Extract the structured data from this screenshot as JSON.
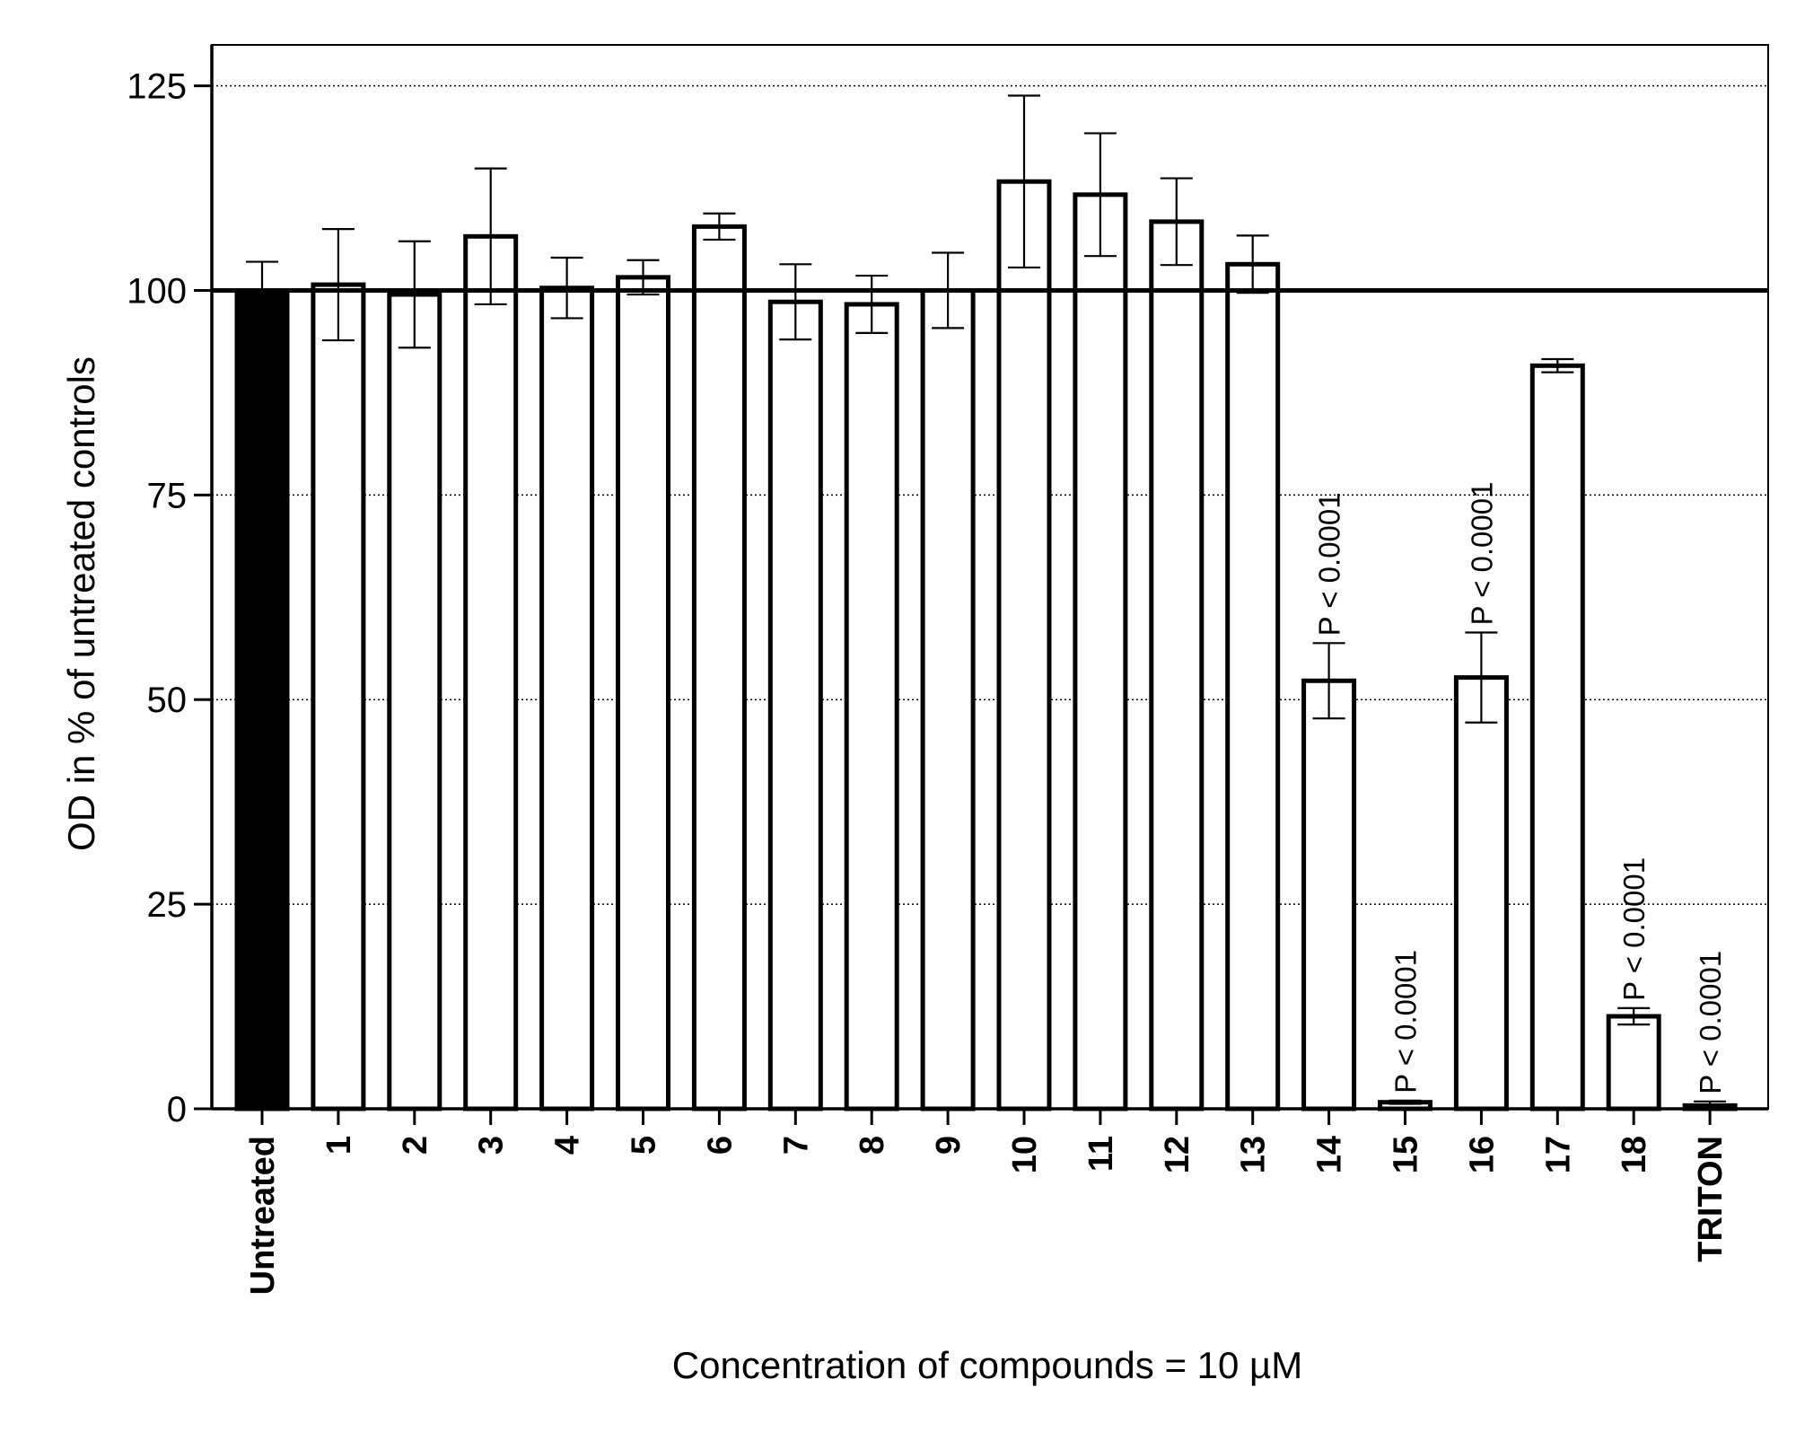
{
  "chart_data": {
    "type": "bar",
    "title": "",
    "xlabel": "Concentration of compounds = 10 µM",
    "ylabel": "OD in % of untreated controls",
    "ylim": [
      0,
      130
    ],
    "yticks": [
      "0",
      "25",
      "50",
      "75",
      "100",
      "125"
    ],
    "grid": "dotted horizontal at 25, 50, 75, 125",
    "reference_line": 100,
    "categories": [
      "Untreated",
      "1",
      "2",
      "3",
      "4",
      "5",
      "6",
      "7",
      "8",
      "9",
      "10",
      "11",
      "12",
      "13",
      "14",
      "15",
      "16",
      "17",
      "18",
      "TRITON"
    ],
    "values": [
      100,
      100.7,
      99.5,
      106.6,
      100.3,
      101.6,
      107.8,
      98.6,
      98.3,
      100.0,
      113.3,
      111.7,
      108.4,
      103.2,
      52.3,
      0.8,
      52.7,
      90.8,
      11.3,
      0.4
    ],
    "errors": [
      3.5,
      6.8,
      6.5,
      8.3,
      3.7,
      2.1,
      1.6,
      4.6,
      3.5,
      4.6,
      10.5,
      7.5,
      5.3,
      3.5,
      4.6,
      0.2,
      5.5,
      0.8,
      1.0,
      0.5
    ],
    "bar_fill": [
      "#000000",
      "#ffffff",
      "#ffffff",
      "#ffffff",
      "#ffffff",
      "#ffffff",
      "#ffffff",
      "#ffffff",
      "#ffffff",
      "#ffffff",
      "#ffffff",
      "#ffffff",
      "#ffffff",
      "#ffffff",
      "#ffffff",
      "#ffffff",
      "#ffffff",
      "#ffffff",
      "#ffffff",
      "#ffffff"
    ],
    "annotations": [
      {
        "category": "14",
        "text": "P < 0.0001"
      },
      {
        "category": "15",
        "text": "P < 0.0001"
      },
      {
        "category": "16",
        "text": "P < 0.0001"
      },
      {
        "category": "18",
        "text": "P < 0.0001"
      },
      {
        "category": "TRITON",
        "text": "P < 0.0001"
      }
    ]
  }
}
